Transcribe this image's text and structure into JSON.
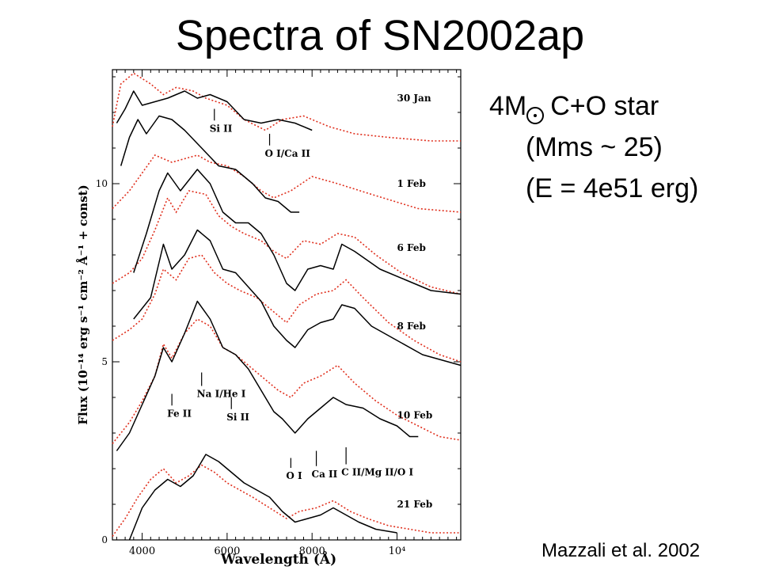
{
  "slide": {
    "title": "Spectra of SN2002ap",
    "model_mass": "4M",
    "model_tail": "C+O star",
    "model_mms": "(Mms ~ 25)",
    "model_energy": "(E = 4e51 erg)",
    "credit": "Mazzali et al. 2002",
    "sun_symbol": "sun-symbol-icon"
  },
  "chart_data": {
    "type": "line",
    "xlabel": "Wavelength (Å)",
    "ylabel": "Flux (10⁻¹⁴ erg s⁻¹ cm⁻² Å⁻¹ + const)",
    "xlim": [
      3300,
      11500
    ],
    "ylim": [
      0,
      13.2
    ],
    "x_ticks": [
      {
        "value": 4000,
        "label": "4000"
      },
      {
        "value": 6000,
        "label": "6000"
      },
      {
        "value": 8000,
        "label": "8000"
      },
      {
        "value": 10000,
        "label": "10⁴"
      }
    ],
    "y_ticks": [
      {
        "value": 0,
        "label": "0"
      },
      {
        "value": 5,
        "label": "5"
      },
      {
        "value": 10,
        "label": "10"
      }
    ],
    "colors": {
      "observed": "#000000",
      "model": "#e0301e"
    },
    "series": [
      {
        "epoch": "30 Jan",
        "label_y": 12.4,
        "observed": [
          [
            3400,
            11.7
          ],
          [
            3600,
            12.1
          ],
          [
            3800,
            12.6
          ],
          [
            4000,
            12.2
          ],
          [
            4300,
            12.3
          ],
          [
            4600,
            12.4
          ],
          [
            5000,
            12.6
          ],
          [
            5300,
            12.4
          ],
          [
            5600,
            12.5
          ],
          [
            6000,
            12.3
          ],
          [
            6400,
            11.8
          ],
          [
            6800,
            11.7
          ],
          [
            7200,
            11.8
          ],
          [
            7600,
            11.7
          ],
          [
            8000,
            11.5
          ]
        ],
        "model": [
          [
            3300,
            11.6
          ],
          [
            3500,
            12.8
          ],
          [
            3800,
            13.1
          ],
          [
            4200,
            12.8
          ],
          [
            4500,
            12.5
          ],
          [
            4800,
            12.7
          ],
          [
            5200,
            12.6
          ],
          [
            5500,
            12.4
          ],
          [
            6000,
            12.2
          ],
          [
            6400,
            11.8
          ],
          [
            6900,
            11.5
          ],
          [
            7300,
            11.8
          ],
          [
            7800,
            11.9
          ],
          [
            8400,
            11.6
          ],
          [
            9000,
            11.4
          ],
          [
            9800,
            11.3
          ],
          [
            10800,
            11.2
          ],
          [
            11500,
            11.2
          ]
        ]
      },
      {
        "epoch": "1 Feb",
        "label_y": 10.0,
        "observed": [
          [
            3500,
            10.5
          ],
          [
            3700,
            11.3
          ],
          [
            3900,
            11.8
          ],
          [
            4100,
            11.4
          ],
          [
            4400,
            11.9
          ],
          [
            4700,
            11.8
          ],
          [
            5000,
            11.5
          ],
          [
            5400,
            11.0
          ],
          [
            5800,
            10.5
          ],
          [
            6200,
            10.4
          ],
          [
            6600,
            10.0
          ],
          [
            6900,
            9.6
          ],
          [
            7200,
            9.5
          ],
          [
            7500,
            9.2
          ],
          [
            7700,
            9.2
          ]
        ],
        "model": [
          [
            3300,
            9.3
          ],
          [
            3700,
            9.8
          ],
          [
            4000,
            10.3
          ],
          [
            4300,
            10.8
          ],
          [
            4700,
            10.6
          ],
          [
            5000,
            10.7
          ],
          [
            5300,
            10.8
          ],
          [
            5600,
            10.6
          ],
          [
            6000,
            10.5
          ],
          [
            6400,
            10.2
          ],
          [
            6800,
            9.8
          ],
          [
            7100,
            9.6
          ],
          [
            7500,
            9.8
          ],
          [
            8000,
            10.2
          ],
          [
            8600,
            10.0
          ],
          [
            9400,
            9.7
          ],
          [
            10500,
            9.3
          ],
          [
            11500,
            9.2
          ]
        ]
      },
      {
        "epoch": "6 Feb",
        "label_y": 8.2,
        "observed": [
          [
            3800,
            7.5
          ],
          [
            4100,
            8.6
          ],
          [
            4400,
            9.8
          ],
          [
            4600,
            10.3
          ],
          [
            4900,
            9.8
          ],
          [
            5300,
            10.4
          ],
          [
            5600,
            10.0
          ],
          [
            5900,
            9.2
          ],
          [
            6200,
            8.9
          ],
          [
            6500,
            8.9
          ],
          [
            6800,
            8.6
          ],
          [
            7100,
            8.0
          ],
          [
            7400,
            7.2
          ],
          [
            7600,
            7.0
          ],
          [
            7900,
            7.6
          ],
          [
            8200,
            7.7
          ],
          [
            8500,
            7.6
          ],
          [
            8700,
            8.3
          ],
          [
            9000,
            8.1
          ],
          [
            9600,
            7.6
          ],
          [
            10200,
            7.3
          ],
          [
            10800,
            7.0
          ],
          [
            11500,
            6.9
          ]
        ],
        "model": [
          [
            3300,
            7.2
          ],
          [
            3700,
            7.5
          ],
          [
            4000,
            7.9
          ],
          [
            4300,
            8.7
          ],
          [
            4600,
            9.6
          ],
          [
            4800,
            9.2
          ],
          [
            5100,
            9.8
          ],
          [
            5500,
            9.7
          ],
          [
            5800,
            9.1
          ],
          [
            6100,
            8.8
          ],
          [
            6400,
            8.6
          ],
          [
            6800,
            8.4
          ],
          [
            7100,
            8.1
          ],
          [
            7400,
            7.9
          ],
          [
            7800,
            8.4
          ],
          [
            8200,
            8.3
          ],
          [
            8600,
            8.6
          ],
          [
            9000,
            8.5
          ],
          [
            9500,
            8.0
          ],
          [
            10100,
            7.5
          ],
          [
            10800,
            7.1
          ],
          [
            11500,
            6.9
          ]
        ]
      },
      {
        "epoch": "8 Feb",
        "label_y": 6.0,
        "observed": [
          [
            3800,
            6.2
          ],
          [
            4200,
            6.8
          ],
          [
            4500,
            8.3
          ],
          [
            4700,
            7.6
          ],
          [
            5000,
            8.0
          ],
          [
            5300,
            8.7
          ],
          [
            5600,
            8.4
          ],
          [
            5900,
            7.6
          ],
          [
            6200,
            7.5
          ],
          [
            6500,
            7.1
          ],
          [
            6800,
            6.7
          ],
          [
            7100,
            6.0
          ],
          [
            7400,
            5.6
          ],
          [
            7600,
            5.4
          ],
          [
            7900,
            5.9
          ],
          [
            8200,
            6.1
          ],
          [
            8500,
            6.2
          ],
          [
            8700,
            6.6
          ],
          [
            9000,
            6.5
          ],
          [
            9400,
            6.0
          ],
          [
            10000,
            5.6
          ],
          [
            10600,
            5.2
          ],
          [
            11200,
            5.0
          ],
          [
            11500,
            4.9
          ]
        ],
        "model": [
          [
            3300,
            5.6
          ],
          [
            3700,
            5.9
          ],
          [
            4000,
            6.2
          ],
          [
            4300,
            6.9
          ],
          [
            4500,
            7.6
          ],
          [
            4800,
            7.3
          ],
          [
            5100,
            7.9
          ],
          [
            5400,
            8.0
          ],
          [
            5700,
            7.5
          ],
          [
            6000,
            7.2
          ],
          [
            6300,
            7.0
          ],
          [
            6700,
            6.8
          ],
          [
            7100,
            6.4
          ],
          [
            7400,
            6.1
          ],
          [
            7700,
            6.6
          ],
          [
            8100,
            6.9
          ],
          [
            8500,
            7.0
          ],
          [
            8800,
            7.3
          ],
          [
            9200,
            6.8
          ],
          [
            9800,
            6.1
          ],
          [
            10400,
            5.6
          ],
          [
            11000,
            5.2
          ],
          [
            11500,
            5.0
          ]
        ]
      },
      {
        "epoch": "10 Feb",
        "label_y": 3.5,
        "observed": [
          [
            3400,
            2.5
          ],
          [
            3700,
            3.0
          ],
          [
            4000,
            3.8
          ],
          [
            4300,
            4.6
          ],
          [
            4500,
            5.4
          ],
          [
            4700,
            5.0
          ],
          [
            5000,
            5.8
          ],
          [
            5300,
            6.7
          ],
          [
            5600,
            6.2
          ],
          [
            5900,
            5.4
          ],
          [
            6200,
            5.2
          ],
          [
            6500,
            4.8
          ],
          [
            6800,
            4.2
          ],
          [
            7100,
            3.6
          ],
          [
            7300,
            3.4
          ],
          [
            7600,
            3.0
          ],
          [
            7900,
            3.4
          ],
          [
            8200,
            3.7
          ],
          [
            8500,
            4.0
          ],
          [
            8800,
            3.8
          ],
          [
            9200,
            3.7
          ],
          [
            9600,
            3.4
          ],
          [
            10000,
            3.2
          ],
          [
            10300,
            2.9
          ],
          [
            10500,
            2.9
          ]
        ],
        "model": [
          [
            3300,
            2.7
          ],
          [
            3700,
            3.3
          ],
          [
            4000,
            3.9
          ],
          [
            4300,
            4.6
          ],
          [
            4500,
            5.5
          ],
          [
            4700,
            5.1
          ],
          [
            5000,
            5.8
          ],
          [
            5300,
            6.2
          ],
          [
            5600,
            6.0
          ],
          [
            5900,
            5.4
          ],
          [
            6200,
            5.2
          ],
          [
            6500,
            4.9
          ],
          [
            6800,
            4.6
          ],
          [
            7200,
            4.2
          ],
          [
            7500,
            4.0
          ],
          [
            7800,
            4.4
          ],
          [
            8200,
            4.6
          ],
          [
            8600,
            4.9
          ],
          [
            9000,
            4.4
          ],
          [
            9500,
            3.9
          ],
          [
            10000,
            3.5
          ],
          [
            10500,
            3.2
          ],
          [
            11000,
            2.9
          ],
          [
            11500,
            2.8
          ]
        ]
      },
      {
        "epoch": "21 Feb",
        "label_y": 1.0,
        "observed": [
          [
            3700,
            0.0
          ],
          [
            4000,
            0.9
          ],
          [
            4300,
            1.4
          ],
          [
            4600,
            1.7
          ],
          [
            4900,
            1.5
          ],
          [
            5200,
            1.8
          ],
          [
            5500,
            2.4
          ],
          [
            5800,
            2.2
          ],
          [
            6100,
            1.9
          ],
          [
            6400,
            1.6
          ],
          [
            6700,
            1.4
          ],
          [
            7000,
            1.2
          ],
          [
            7300,
            0.8
          ],
          [
            7600,
            0.5
          ],
          [
            7900,
            0.6
          ],
          [
            8200,
            0.7
          ],
          [
            8500,
            0.9
          ],
          [
            8800,
            0.7
          ],
          [
            9100,
            0.5
          ],
          [
            9500,
            0.3
          ],
          [
            10000,
            0.2
          ]
        ],
        "model": [
          [
            3300,
            0.1
          ],
          [
            3600,
            0.6
          ],
          [
            3900,
            1.2
          ],
          [
            4200,
            1.7
          ],
          [
            4500,
            2.0
          ],
          [
            4800,
            1.6
          ],
          [
            5100,
            1.8
          ],
          [
            5400,
            2.1
          ],
          [
            5700,
            1.9
          ],
          [
            6000,
            1.6
          ],
          [
            6300,
            1.4
          ],
          [
            6600,
            1.2
          ],
          [
            7000,
            0.9
          ],
          [
            7400,
            0.6
          ],
          [
            7700,
            0.8
          ],
          [
            8100,
            0.9
          ],
          [
            8500,
            1.1
          ],
          [
            8900,
            0.8
          ],
          [
            9300,
            0.6
          ],
          [
            9800,
            0.4
          ],
          [
            10300,
            0.3
          ],
          [
            10800,
            0.2
          ],
          [
            11500,
            0.2
          ]
        ]
      }
    ],
    "annotations": [
      {
        "text": "Si II",
        "x": 5700,
        "y": 11.55,
        "tick_top": 12.1
      },
      {
        "text": "O I/Ca II",
        "x": 7000,
        "y": 10.85,
        "tick_top": 11.4
      },
      {
        "text": "Na I/He I",
        "x": 5400,
        "y": 4.1,
        "tick_top": 4.7
      },
      {
        "text": "Fe II",
        "x": 4700,
        "y": 3.55,
        "tick_top": 4.1
      },
      {
        "text": "Si II",
        "x": 6100,
        "y": 3.45,
        "tick_top": 4.0
      },
      {
        "text": "O I",
        "x": 7500,
        "y": 1.8,
        "tick_top": 2.3
      },
      {
        "text": "Ca II",
        "x": 8100,
        "y": 1.85,
        "tick_top": 2.5
      },
      {
        "text": "C II/Mg II/O I",
        "x": 8800,
        "y": 1.9,
        "tick_top": 2.6
      }
    ]
  }
}
